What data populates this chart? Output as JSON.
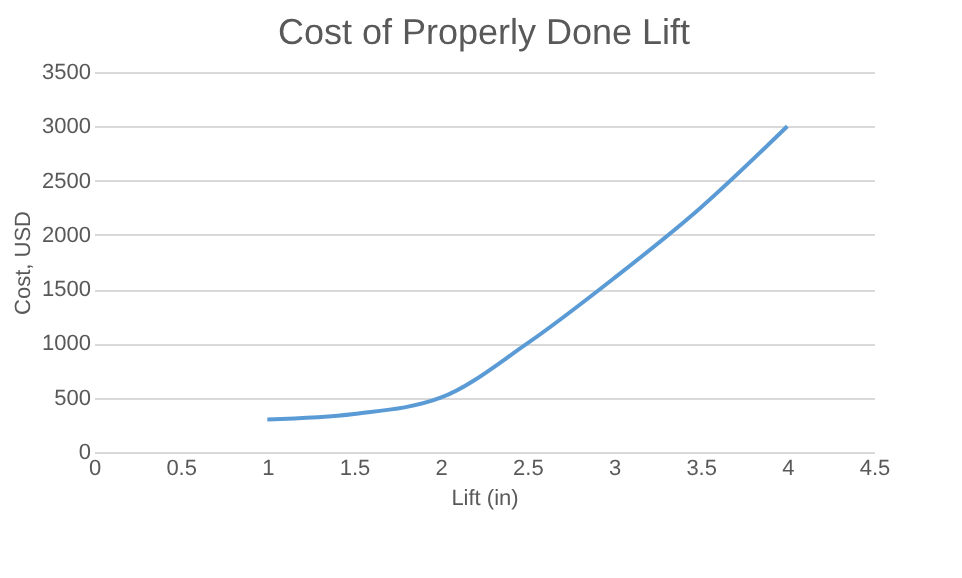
{
  "chart_data": {
    "type": "line",
    "title": "Cost of Properly Done Lift",
    "xlabel": "Lift (in)",
    "ylabel": "Cost, USD",
    "x": [
      1,
      1.5,
      2,
      2.5,
      3,
      3.5,
      4
    ],
    "series": [
      {
        "color": "#5b9bd5",
        "values": [
          300,
          350,
          500,
          1000,
          1600,
          2250,
          3000
        ]
      }
    ],
    "xlim": [
      0,
      4.5
    ],
    "xticks": [
      0,
      0.5,
      1,
      1.5,
      2,
      2.5,
      3,
      3.5,
      4,
      4.5
    ],
    "ylim": [
      0,
      3500
    ],
    "yticks": [
      0,
      500,
      1000,
      1500,
      2000,
      2500,
      3000,
      3500
    ],
    "grid": "y",
    "marker": "none",
    "line_style": "solid",
    "legend": false
  }
}
